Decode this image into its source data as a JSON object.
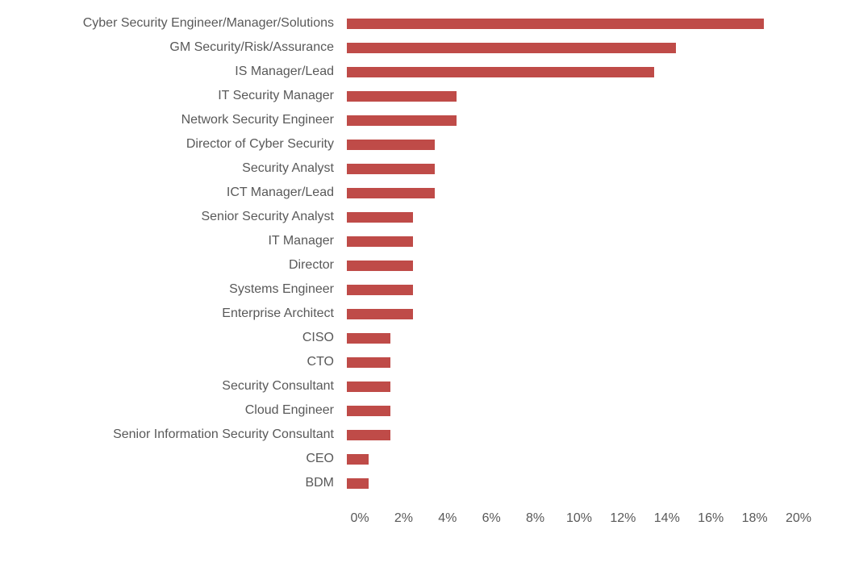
{
  "chart_data": {
    "type": "bar",
    "orientation": "horizontal",
    "title": "",
    "xlabel": "",
    "ylabel": "",
    "xlim": [
      0,
      20
    ],
    "x_ticks": [
      "0%",
      "2%",
      "4%",
      "6%",
      "8%",
      "10%",
      "12%",
      "14%",
      "16%",
      "18%",
      "20%"
    ],
    "x_tick_values": [
      0,
      2,
      4,
      6,
      8,
      10,
      12,
      14,
      16,
      18,
      20
    ],
    "grid": false,
    "legend": false,
    "bar_color": "#bf4b48",
    "label_color": "#595959",
    "value_unit": "%",
    "categories": [
      "Cyber Security Engineer/Manager/Solutions",
      "GM Security/Risk/Assurance",
      "IS Manager/Lead",
      "IT Security Manager",
      "Network Security Engineer",
      "Director of Cyber Security",
      "Security Analyst",
      "ICT Manager/Lead",
      "Senior Security Analyst",
      "IT Manager",
      "Director",
      "Systems Engineer",
      "Enterprise Architect",
      "CISO",
      "CTO",
      "Security Consultant",
      "Cloud Engineer",
      "Senior Information Security Consultant",
      "CEO",
      "BDM"
    ],
    "values": [
      19,
      15,
      14,
      5,
      5,
      4,
      4,
      4,
      3,
      3,
      3,
      3,
      3,
      2,
      2,
      2,
      2,
      2,
      1,
      1
    ]
  }
}
